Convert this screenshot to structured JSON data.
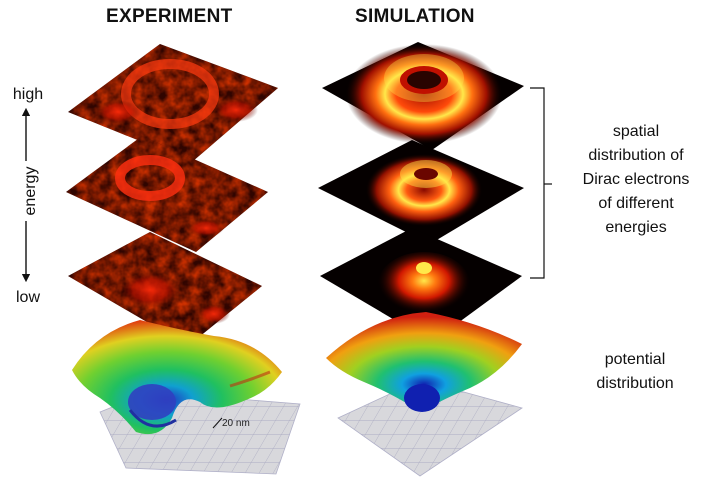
{
  "titles": {
    "experiment": "EXPERIMENT",
    "simulation": "SIMULATION"
  },
  "axis": {
    "high": "high",
    "low": "low",
    "energy": "energy"
  },
  "annotations": {
    "spatial_lines": [
      "spatial",
      "distribution of",
      "Dirac electrons",
      "of different",
      "energies"
    ],
    "potential_lines": [
      "potential",
      "distribution"
    ],
    "scale_bar": "20 nm"
  },
  "colors": {
    "dark_red": "#2a0400",
    "red": "#c81800",
    "bright_red": "#ff3a0a",
    "orange": "#ff8a10",
    "yellow": "#ffe84a",
    "grid_floor": "#d8d8dc",
    "grid_line": "#a8a8c0"
  }
}
